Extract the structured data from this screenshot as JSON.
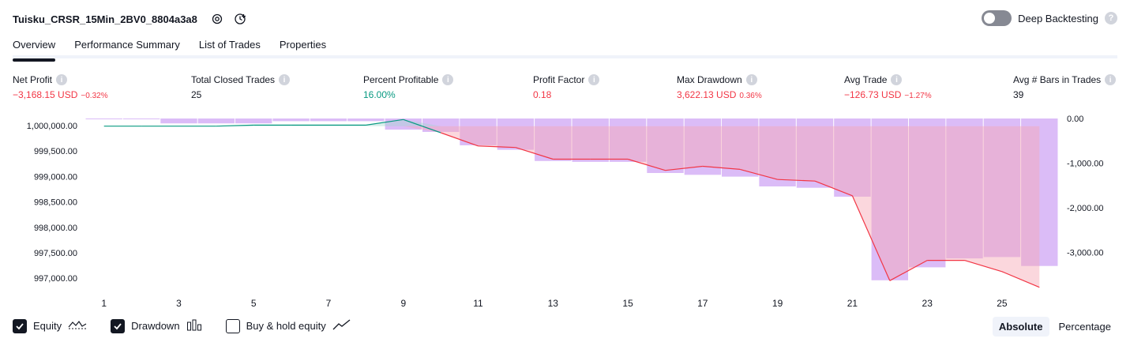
{
  "header": {
    "strategy_name": "Tuisku_CRSR_15Min_2BV0_8804a3a8",
    "deep_backtesting_label": "Deep Backtesting",
    "help_glyph": "?"
  },
  "tabs": [
    {
      "label": "Overview",
      "active": true
    },
    {
      "label": "Performance Summary",
      "active": false
    },
    {
      "label": "List of Trades",
      "active": false
    },
    {
      "label": "Properties",
      "active": false
    }
  ],
  "info_glyph": "i",
  "metrics": {
    "net_profit": {
      "title": "Net Profit",
      "value": "−3,168.15 USD",
      "pct": "−0.32%"
    },
    "total_closed_trades": {
      "title": "Total Closed Trades",
      "value": "25"
    },
    "percent_profitable": {
      "title": "Percent Profitable",
      "value": "16.00%"
    },
    "profit_factor": {
      "title": "Profit Factor",
      "value": "0.18"
    },
    "max_drawdown": {
      "title": "Max Drawdown",
      "value": "3,622.13 USD",
      "pct": "0.36%"
    },
    "avg_trade": {
      "title": "Avg Trade",
      "value": "−126.73 USD",
      "pct": "−1.27%"
    },
    "avg_bars": {
      "title": "Avg # Bars in Trades",
      "value": "39"
    }
  },
  "colors": {
    "negative": "#f23645",
    "positive": "#089981",
    "drawdown_fill": "#d9b8f7",
    "equity_line_gain": "#089981",
    "equity_line_loss": "#f23645"
  },
  "legend": {
    "equity_label": "Equity",
    "drawdown_label": "Drawdown",
    "buyhold_label": "Buy & hold equity",
    "equity_checked": true,
    "drawdown_checked": true,
    "buyhold_checked": false
  },
  "modes": {
    "absolute": "Absolute",
    "percentage": "Percentage",
    "active": "absolute"
  },
  "chart_data": {
    "type": "line",
    "x": [
      1,
      2,
      3,
      4,
      5,
      6,
      7,
      8,
      9,
      10,
      11,
      12,
      13,
      14,
      15,
      16,
      17,
      18,
      19,
      20,
      21,
      22,
      23,
      24,
      25,
      26
    ],
    "x_tick_labels": [
      "1",
      "3",
      "5",
      "7",
      "9",
      "11",
      "13",
      "15",
      "17",
      "19",
      "21",
      "23",
      "25"
    ],
    "equity": [
      999990,
      999990,
      999990,
      999990,
      1000010,
      1000010,
      1000010,
      1000010,
      1000120,
      999860,
      999600,
      999570,
      999340,
      999340,
      999340,
      999120,
      999200,
      999140,
      998940,
      998910,
      998620,
      996950,
      997350,
      997350,
      997130,
      996820
    ],
    "drawdown": [
      -10,
      -10,
      -110,
      -110,
      -110,
      -60,
      -60,
      -60,
      -250,
      -300,
      -600,
      -700,
      -950,
      -970,
      -970,
      -1220,
      -1260,
      -1300,
      -1520,
      -1550,
      -1750,
      -3620,
      -3330,
      -3130,
      -3100,
      -3300
    ],
    "y_left_ticks": [
      "1,000,000.00",
      "999,500.00",
      "999,000.00",
      "998,500.00",
      "998,000.00",
      "997,500.00",
      "997,000.00"
    ],
    "y_right_ticks": [
      "0.00",
      "-1,000.00",
      "-2,000.00",
      "-3,000.00"
    ],
    "ylim_left": [
      996800,
      1000140
    ],
    "ylim_right": [
      -3800,
      0
    ],
    "series_colors": {
      "equity_gain": "#089981",
      "equity_loss": "#f23645",
      "drawdown": "#d9b8f7"
    }
  }
}
